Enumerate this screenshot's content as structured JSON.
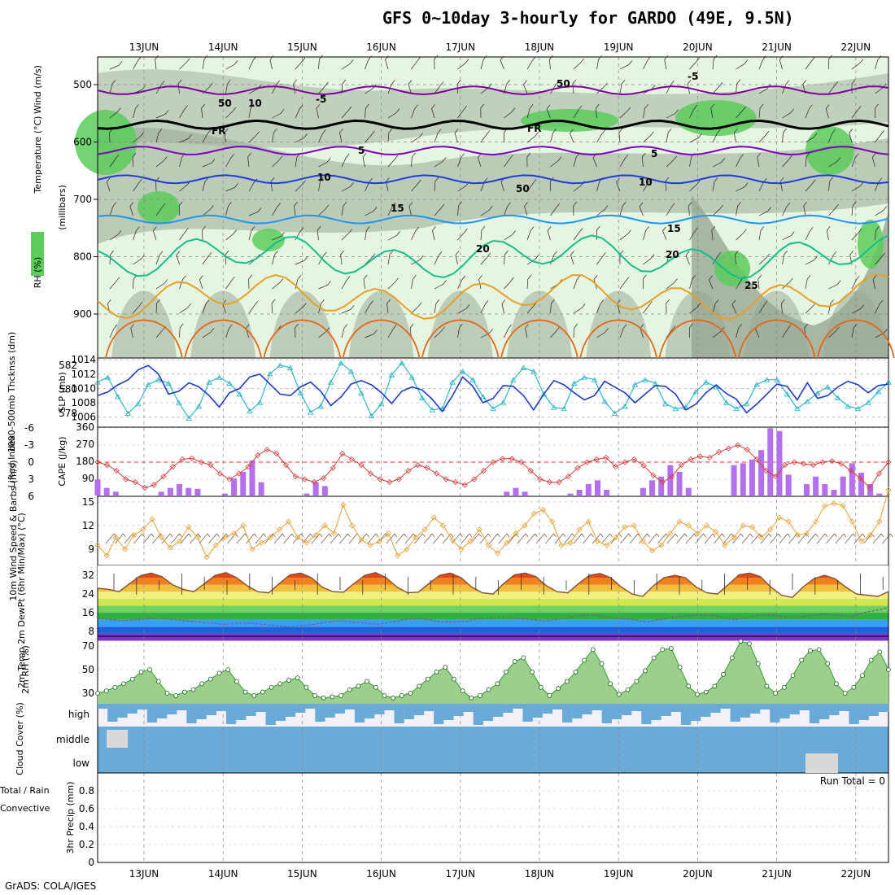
{
  "title": "GFS 0~10day 3-hourly for GARDO (49E, 9.5N)",
  "footer": "GrADS: COLA/IGES",
  "dates": [
    "13JUN",
    "14JUN",
    "15JUN",
    "16JUN",
    "17JUN",
    "18JUN",
    "19JUN",
    "20JUN",
    "21JUN",
    "22JUN"
  ],
  "chart_data": [
    {
      "type": "heatmap",
      "name": "upper_air",
      "ylabel_parts": [
        "RH (%)",
        "Temperature (°C)",
        "Wind (m/s)"
      ],
      "ylabel_axis": "(millibars)",
      "yticks": [
        500,
        600,
        700,
        800,
        900
      ],
      "contour_labels": [
        "-5",
        "-5",
        "FR",
        "FR",
        "5",
        "5",
        "10",
        "10",
        "15",
        "15",
        "20",
        "20",
        "25",
        "50",
        "10",
        "50",
        "50"
      ],
      "isotherms": [
        {
          "label": "-5",
          "level_mb": 510
        },
        {
          "label": "0 (FR)",
          "level_mb": 570
        },
        {
          "label": "5",
          "level_mb": 615
        },
        {
          "label": "10",
          "level_mb": 665
        },
        {
          "label": "15",
          "level_mb": 735
        },
        {
          "label": "20",
          "level_mb": 800
        },
        {
          "label": "25",
          "level_mb": 870
        }
      ],
      "colors": {
        "rh_light": "#e6f5e1",
        "rh_mid": "#b9c9b6",
        "rh_dark": "#98a893",
        "rh_wet": "#5acd5a",
        "t_m5": "#8000a0",
        "t_fr": "#000000",
        "t_5": "#8000c0",
        "t_10": "#1e3cdc",
        "t_15": "#1e96f0",
        "t_20": "#14be8c",
        "t_25": "#e6a028",
        "t_30": "#e66414"
      }
    },
    {
      "type": "line",
      "name": "thickness_slp",
      "ylabel_left": "1000-500mb Thcknss (dm)",
      "ylabel_right": "SLP (mb)",
      "yticks_left": [
        578,
        580,
        582
      ],
      "yticks_right": [
        1006,
        1008,
        1010,
        1012,
        1014
      ],
      "series": [
        {
          "name": "Thickness",
          "color": "#30b8c8",
          "values": [
            580.6,
            581.0,
            579.4,
            578.0,
            578.8,
            580.4,
            580.8,
            580.5,
            578.9,
            577.6,
            578.6,
            580.6,
            581.0,
            580.5,
            579.6,
            578.2,
            578.9,
            581.3,
            582.0,
            581.8,
            579.7,
            578.1,
            578.6,
            580.6,
            582.2,
            581.5,
            579.7,
            577.8,
            578.8,
            581.2,
            582.2,
            581.0,
            579.3,
            578.3,
            578.4,
            580.6,
            581.5,
            580.8,
            579.4,
            578.4,
            578.9,
            580.8,
            581.8,
            581.5,
            579.6,
            578.5,
            578.4,
            580.5,
            581.0,
            580.8,
            579.0,
            578.0,
            578.6,
            580.4,
            580.8,
            580.5,
            578.8,
            578.4,
            578.5,
            579.8,
            580.6,
            580.2,
            578.9,
            578.4,
            578.8,
            580.4,
            580.8,
            580.8,
            579.6,
            578.4,
            579.0,
            579.7,
            580.2,
            579.3,
            578.6,
            578.4,
            578.9,
            579.8,
            580.6
          ]
        },
        {
          "name": "SLP",
          "color": "#1e3cc8",
          "values": [
            1009.0,
            1009.5,
            1010.5,
            1011.2,
            1012.6,
            1013.2,
            1012.0,
            1009.2,
            1009.6,
            1010.8,
            1010.2,
            1009.0,
            1007.4,
            1009.4,
            1010.0,
            1011.6,
            1012.0,
            1010.6,
            1009.2,
            1009.0,
            1010.2,
            1010.9,
            1009.6,
            1007.6,
            1008.8,
            1010.6,
            1011.1,
            1010.5,
            1009.4,
            1007.9,
            1009.6,
            1010.2,
            1009.8,
            1008.5,
            1006.8,
            1009.0,
            1011.6,
            1010.3,
            1008.0,
            1008.6,
            1010.4,
            1010.3,
            1009.0,
            1007.0,
            1009.2,
            1011.1,
            1010.5,
            1009.4,
            1008.4,
            1009.0,
            1011.0,
            1010.2,
            1009.4,
            1008.0,
            1009.2,
            1010.4,
            1010.3,
            1009.2,
            1007.0,
            1007.8,
            1009.4,
            1010.5,
            1009.3,
            1008.5,
            1006.6,
            1007.8,
            1009.2,
            1010.6,
            1010.3,
            1008.4,
            1010.8,
            1008.6,
            1009.0,
            1010.2,
            1011.0,
            1010.5,
            1009.4,
            1010.4,
            1010.6
          ]
        }
      ]
    },
    {
      "type": "bar",
      "name": "cape_li",
      "ylabel_left": "Lifted Index",
      "ylabel_right": "CAPE (J/kg)",
      "yticks_left": [
        "-6",
        "-3",
        "0",
        "3",
        "6"
      ],
      "yticks_right": [
        90,
        180,
        270,
        360
      ],
      "lifted_index": [
        0,
        0.5,
        1.5,
        3,
        3.5,
        4.5,
        4,
        2.5,
        0.8,
        -0.5,
        -0.7,
        0,
        0.5,
        2,
        3,
        2,
        0.8,
        -1.2,
        -2.2,
        -1.5,
        0.5,
        2.5,
        3,
        3.5,
        2.8,
        1,
        -1.5,
        -0.5,
        0.5,
        2,
        3,
        3.5,
        3,
        1.5,
        0.5,
        1,
        2,
        3,
        3.5,
        4,
        3,
        1.5,
        0,
        -0.6,
        -0.6,
        0,
        1.5,
        3,
        3.5,
        3.5,
        2.5,
        1,
        0,
        -0.5,
        -0.8,
        0.8,
        0,
        -0.5,
        0.6,
        2.3,
        3.5,
        2.5,
        0.5,
        -0.5,
        -1.0,
        -0.8,
        -1.8,
        -2.4,
        -3.0,
        -2.2,
        -0.5,
        1.5,
        2.5,
        0.5,
        0,
        0.3,
        0.5,
        0,
        -0.2,
        0.3,
        1.5,
        2.8,
        4.5,
        2,
        0
      ],
      "cape": [
        85,
        40,
        20,
        0,
        0,
        0,
        0,
        20,
        40,
        60,
        40,
        35,
        0,
        0,
        10,
        90,
        125,
        185,
        70,
        0,
        0,
        0,
        0,
        10,
        70,
        50,
        0,
        0,
        0,
        0,
        0,
        0,
        0,
        0,
        0,
        0,
        0,
        0,
        0,
        0,
        0,
        0,
        0,
        0,
        0,
        20,
        40,
        20,
        0,
        0,
        0,
        0,
        10,
        30,
        60,
        80,
        30,
        0,
        0,
        0,
        40,
        80,
        100,
        160,
        125,
        40,
        0,
        0,
        0,
        0,
        160,
        170,
        190,
        240,
        355,
        340,
        110,
        0,
        60,
        100,
        60,
        30,
        100,
        170,
        120,
        60,
        10,
        0
      ],
      "colors": {
        "cape_bar": "#b46ef0",
        "li_line": "#d83c3c",
        "zero_line": "#e03030"
      }
    },
    {
      "type": "line",
      "name": "wind10m",
      "ylabel": "10m Wind Speed & Barbs (m/s)",
      "yticks": [
        9,
        12,
        15
      ],
      "series": [
        {
          "name": "Speed",
          "color": "#e8a030",
          "values": [
            9.5,
            8.2,
            10.5,
            9.0,
            10.8,
            11.5,
            12.8,
            10.5,
            9.2,
            10.0,
            11.8,
            10.5,
            8.0,
            9.5,
            10.5,
            11.0,
            12.0,
            9.0,
            9.8,
            10.5,
            11.5,
            12.5,
            10.5,
            9.8,
            10.8,
            12.0,
            11.0,
            14.6,
            12.0,
            10.2,
            9.5,
            10.0,
            11.0,
            8.2,
            9.0,
            10.5,
            11.5,
            13.0,
            12.0,
            10.2,
            9.0,
            10.0,
            11.5,
            9.5,
            8.5,
            9.8,
            11.0,
            12.0,
            13.5,
            14.0,
            12.5,
            9.5,
            9.8,
            11.5,
            12.5,
            10.0,
            9.5,
            10.5,
            11.8,
            12.0,
            10.0,
            8.8,
            9.5,
            11.0,
            12.5,
            12.0,
            11.0,
            12.0,
            11.2,
            9.5,
            10.5,
            12.0,
            11.8,
            10.5,
            11.5,
            13.0,
            12.5,
            10.8,
            11.0,
            12.5,
            14.5,
            14.8,
            14.5,
            12.5,
            10.0,
            10.8,
            12.5,
            16.5
          ]
        }
      ]
    },
    {
      "type": "area",
      "name": "temp2m",
      "ylabel": "2m Temp 2m DewPt (6hr Min/Max) (°C)",
      "yticks": [
        8,
        16,
        24,
        32
      ],
      "series": [
        {
          "name": "Temp",
          "color": "#8a5030",
          "values": [
            26.5,
            26.0,
            25.0,
            28.5,
            31.8,
            33.0,
            31.5,
            28.0,
            26.0,
            25.0,
            28.5,
            32.0,
            33.2,
            31.0,
            27.5,
            25.0,
            24.5,
            28.5,
            32.2,
            33.0,
            31.0,
            27.0,
            25.0,
            24.8,
            28.5,
            32.0,
            33.2,
            31.0,
            27.0,
            24.5,
            24.8,
            28.5,
            32.0,
            33.0,
            31.0,
            27.0,
            24.5,
            24.0,
            28.5,
            32.2,
            33.0,
            31.5,
            27.5,
            25.0,
            24.5,
            28.5,
            32.0,
            32.8,
            31.0,
            27.0,
            24.0,
            23.0,
            27.5,
            31.0,
            32.0,
            31.0,
            27.0,
            24.5,
            24.0,
            28.0,
            32.2,
            33.0,
            31.5,
            27.0,
            23.5,
            22.5,
            27.0,
            30.5,
            32.0,
            30.5,
            27.0,
            24.0,
            23.5,
            23.0,
            25.0
          ]
        },
        {
          "name": "DewPt",
          "color": "#7a5a90",
          "values": [
            14,
            13,
            12.5,
            13,
            13.5,
            13.5,
            13,
            12.5,
            12,
            11.5,
            11,
            11.5,
            11.5,
            11,
            10.5,
            10,
            10.5,
            11,
            12,
            12.5,
            12,
            11.5,
            11,
            12,
            13,
            13.5,
            13,
            12,
            12,
            12.5,
            13.5,
            14,
            14,
            13.5,
            13,
            12.5,
            13,
            14,
            15,
            15,
            14,
            13.5,
            13,
            12,
            13,
            14,
            14.5,
            15,
            15,
            14,
            13,
            14,
            15,
            15,
            14,
            14,
            15,
            15.5,
            15,
            14,
            16,
            17,
            18
          ]
        }
      ],
      "colors": {
        "bands": [
          "#8030d0",
          "#2060d8",
          "#38a0f0",
          "#30b040",
          "#70d060",
          "#d0e850",
          "#f0f080",
          "#f0c040",
          "#f08020",
          "#e04818"
        ]
      }
    },
    {
      "type": "area",
      "name": "rh2m",
      "ylabel": "2m RH (%)",
      "yticks": [
        30,
        50,
        70
      ],
      "series": [
        {
          "name": "RH",
          "color": "#20a020",
          "values": [
            30,
            32,
            35,
            38,
            42,
            48,
            50,
            40,
            30,
            28,
            31,
            33,
            38,
            42,
            47,
            50,
            40,
            31,
            28,
            31,
            35,
            38,
            41,
            43,
            35,
            28,
            26,
            27,
            28,
            33,
            36,
            40,
            35,
            28,
            26,
            28,
            30,
            36,
            42,
            48,
            52,
            42,
            32,
            26,
            28,
            33,
            38,
            48,
            57,
            60,
            48,
            35,
            28,
            34,
            40,
            48,
            58,
            67,
            55,
            38,
            29,
            33,
            40,
            49,
            60,
            67,
            68,
            52,
            36,
            29,
            31,
            36,
            46,
            60,
            74,
            72,
            55,
            36,
            30,
            35,
            45,
            58,
            66,
            67,
            55,
            38,
            30,
            35,
            45,
            58,
            65,
            50
          ]
        }
      ]
    },
    {
      "type": "bar",
      "name": "cloud_cover",
      "ylabel": "Cloud Cover (%)",
      "levels": [
        "high",
        "middle",
        "low"
      ],
      "colors": {
        "cloud": "#6aaad8",
        "clear_high": "#f4f0f8",
        "clear": "#d8d8d8"
      }
    },
    {
      "type": "bar",
      "name": "precip",
      "ylabel_parts": [
        "Total / Rain",
        "Convective"
      ],
      "ylabel_axis": "3hr Precip (mm)",
      "yticks": [
        0,
        0.2,
        0.4,
        0.6,
        0.8
      ],
      "run_total": "Run Total = 0",
      "values": []
    }
  ]
}
